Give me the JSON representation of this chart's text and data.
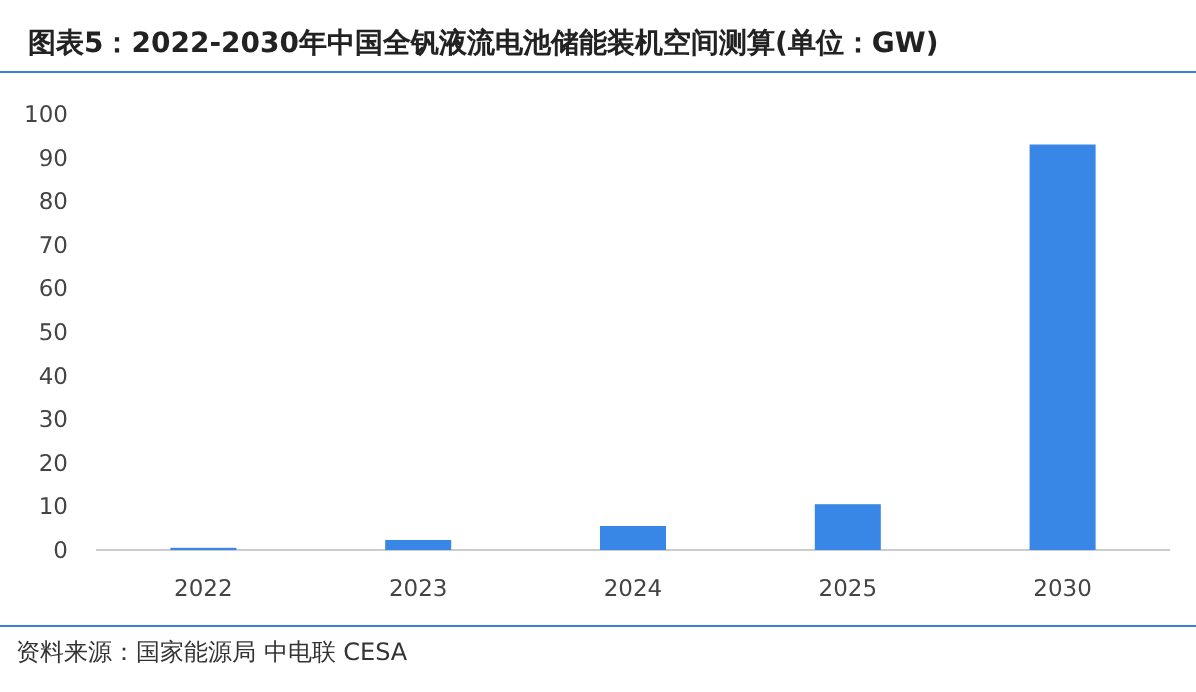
{
  "chart_data": {
    "type": "bar",
    "title": "图表5：2022-2030年中国全钒液流电池储能装机空间测算(单位：GW)",
    "categories": [
      "2022",
      "2023",
      "2024",
      "2025",
      "2030"
    ],
    "values": [
      0.5,
      2.3,
      5.5,
      10.5,
      93
    ],
    "color": "#3886e6",
    "ylim": [
      0,
      100
    ],
    "yticks": [
      0,
      10,
      20,
      30,
      40,
      50,
      60,
      70,
      80,
      90,
      100
    ],
    "grid": false,
    "annotations": [
      "资料来源：国家能源局 中电联 CESA"
    ]
  }
}
